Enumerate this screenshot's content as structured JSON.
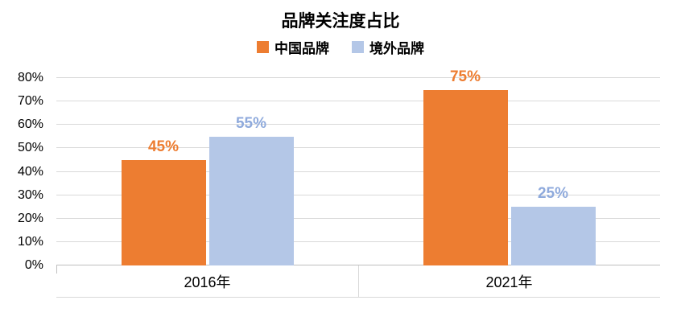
{
  "chart_data": {
    "type": "bar",
    "title": "品牌关注度占比",
    "categories": [
      "2016年",
      "2021年"
    ],
    "series": [
      {
        "name": "中国品牌",
        "color": "#ED7D31",
        "label_color": "#ED7D31",
        "values": [
          45,
          75
        ]
      },
      {
        "name": "境外品牌",
        "color": "#B4C7E7",
        "label_color": "#8FAADC",
        "values": [
          55,
          25
        ]
      }
    ],
    "data_labels": [
      [
        "45%",
        "75%"
      ],
      [
        "55%",
        "25%"
      ]
    ],
    "ylim": [
      0,
      80
    ],
    "ytick_step": 10,
    "ytick_labels": [
      "0%",
      "10%",
      "20%",
      "30%",
      "40%",
      "50%",
      "60%",
      "70%",
      "80%"
    ],
    "grid": true,
    "legend_position": "top",
    "xlabel": "",
    "ylabel": ""
  }
}
